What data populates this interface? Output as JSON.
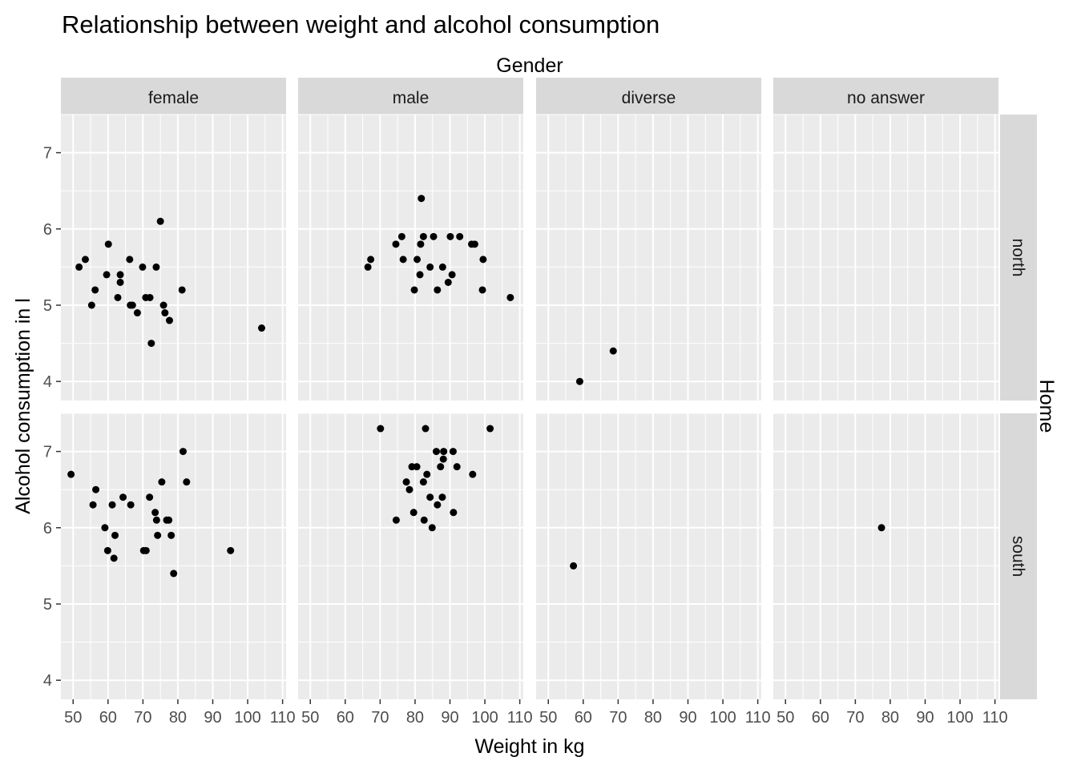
{
  "chart_data": {
    "type": "scatter",
    "title": "Relationship between weight and alcohol consumption",
    "xlabel": "Weight in kg",
    "ylabel": "Alcohol consumption in l",
    "facet_col_title": "Gender",
    "facet_row_title": "Home",
    "facet_cols": [
      "female",
      "male",
      "diverse",
      "no answer"
    ],
    "facet_rows": [
      "north",
      "south"
    ],
    "xlim": [
      46.5,
      111
    ],
    "ylim": [
      3.75,
      7.5
    ],
    "x_ticks": [
      50,
      60,
      70,
      80,
      90,
      100,
      110
    ],
    "y_ticks": [
      4,
      5,
      6,
      7
    ],
    "grid": true,
    "point_color": "#000000",
    "panel_bg": "#ebebeb",
    "strip_bg": "#d9d9d9",
    "panels": [
      {
        "col": "female",
        "row": "north",
        "points": [
          [
            51.7,
            5.5
          ],
          [
            53.5,
            5.6
          ],
          [
            55.3,
            5.0
          ],
          [
            56.3,
            5.2
          ],
          [
            59.6,
            5.4
          ],
          [
            60.1,
            5.8
          ],
          [
            62.8,
            5.1
          ],
          [
            63.5,
            5.4
          ],
          [
            63.5,
            5.3
          ],
          [
            66.2,
            5.6
          ],
          [
            66.4,
            5.0
          ],
          [
            67.0,
            5.0
          ],
          [
            68.4,
            4.9
          ],
          [
            69.9,
            5.5
          ],
          [
            70.8,
            5.1
          ],
          [
            72.0,
            5.1
          ],
          [
            72.4,
            4.5
          ],
          [
            73.8,
            5.5
          ],
          [
            75.0,
            6.1
          ],
          [
            75.9,
            5.0
          ],
          [
            76.3,
            4.9
          ],
          [
            77.6,
            4.8
          ],
          [
            81.2,
            5.2
          ],
          [
            104.0,
            4.7
          ]
        ]
      },
      {
        "col": "male",
        "row": "north",
        "points": [
          [
            66.5,
            5.5
          ],
          [
            67.3,
            5.6
          ],
          [
            74.5,
            5.8
          ],
          [
            76.2,
            5.9
          ],
          [
            76.6,
            5.6
          ],
          [
            79.8,
            5.2
          ],
          [
            80.6,
            5.6
          ],
          [
            81.4,
            5.4
          ],
          [
            81.6,
            5.8
          ],
          [
            81.8,
            6.4
          ],
          [
            82.4,
            5.9
          ],
          [
            84.3,
            5.5
          ],
          [
            85.3,
            5.9
          ],
          [
            86.4,
            5.2
          ],
          [
            87.9,
            5.5
          ],
          [
            89.5,
            5.3
          ],
          [
            90.1,
            5.9
          ],
          [
            90.6,
            5.4
          ],
          [
            92.8,
            5.9
          ],
          [
            96.2,
            5.8
          ],
          [
            97.1,
            5.8
          ],
          [
            99.5,
            5.6
          ],
          [
            99.3,
            5.2
          ],
          [
            107.3,
            5.1
          ]
        ]
      },
      {
        "col": "diverse",
        "row": "north",
        "points": [
          [
            59.0,
            4.0
          ],
          [
            68.6,
            4.4
          ]
        ]
      },
      {
        "col": "no answer",
        "row": "north",
        "points": []
      },
      {
        "col": "female",
        "row": "south",
        "points": [
          [
            49.4,
            6.7
          ],
          [
            55.7,
            6.3
          ],
          [
            56.5,
            6.5
          ],
          [
            59.1,
            6.0
          ],
          [
            59.9,
            5.7
          ],
          [
            61.2,
            6.3
          ],
          [
            61.7,
            5.6
          ],
          [
            62.0,
            5.9
          ],
          [
            64.3,
            6.4
          ],
          [
            66.5,
            6.3
          ],
          [
            70.2,
            5.7
          ],
          [
            70.9,
            5.7
          ],
          [
            71.9,
            6.4
          ],
          [
            73.5,
            6.2
          ],
          [
            73.9,
            6.1
          ],
          [
            74.2,
            5.9
          ],
          [
            75.4,
            6.6
          ],
          [
            76.8,
            6.1
          ],
          [
            77.4,
            6.1
          ],
          [
            78.1,
            5.9
          ],
          [
            78.8,
            5.4
          ],
          [
            81.5,
            7.0
          ],
          [
            82.5,
            6.6
          ],
          [
            95.1,
            5.7
          ]
        ]
      },
      {
        "col": "male",
        "row": "south",
        "points": [
          [
            70.1,
            7.3
          ],
          [
            74.6,
            6.1
          ],
          [
            77.5,
            6.6
          ],
          [
            78.4,
            6.5
          ],
          [
            79.1,
            6.8
          ],
          [
            79.6,
            6.2
          ],
          [
            80.5,
            6.8
          ],
          [
            82.4,
            6.6
          ],
          [
            82.6,
            6.1
          ],
          [
            83.0,
            7.3
          ],
          [
            83.4,
            6.7
          ],
          [
            84.3,
            6.4
          ],
          [
            84.9,
            6.0
          ],
          [
            86.1,
            7.0
          ],
          [
            86.4,
            6.3
          ],
          [
            87.3,
            6.8
          ],
          [
            87.8,
            6.4
          ],
          [
            88.2,
            7.0
          ],
          [
            88.1,
            6.9
          ],
          [
            90.9,
            7.0
          ],
          [
            91.0,
            6.2
          ],
          [
            92.0,
            6.8
          ],
          [
            96.5,
            6.7
          ],
          [
            101.5,
            7.3
          ]
        ]
      },
      {
        "col": "diverse",
        "row": "south",
        "points": [
          [
            57.2,
            5.5
          ]
        ]
      },
      {
        "col": "no answer",
        "row": "south",
        "points": [
          [
            77.5,
            6.0
          ]
        ]
      }
    ]
  }
}
